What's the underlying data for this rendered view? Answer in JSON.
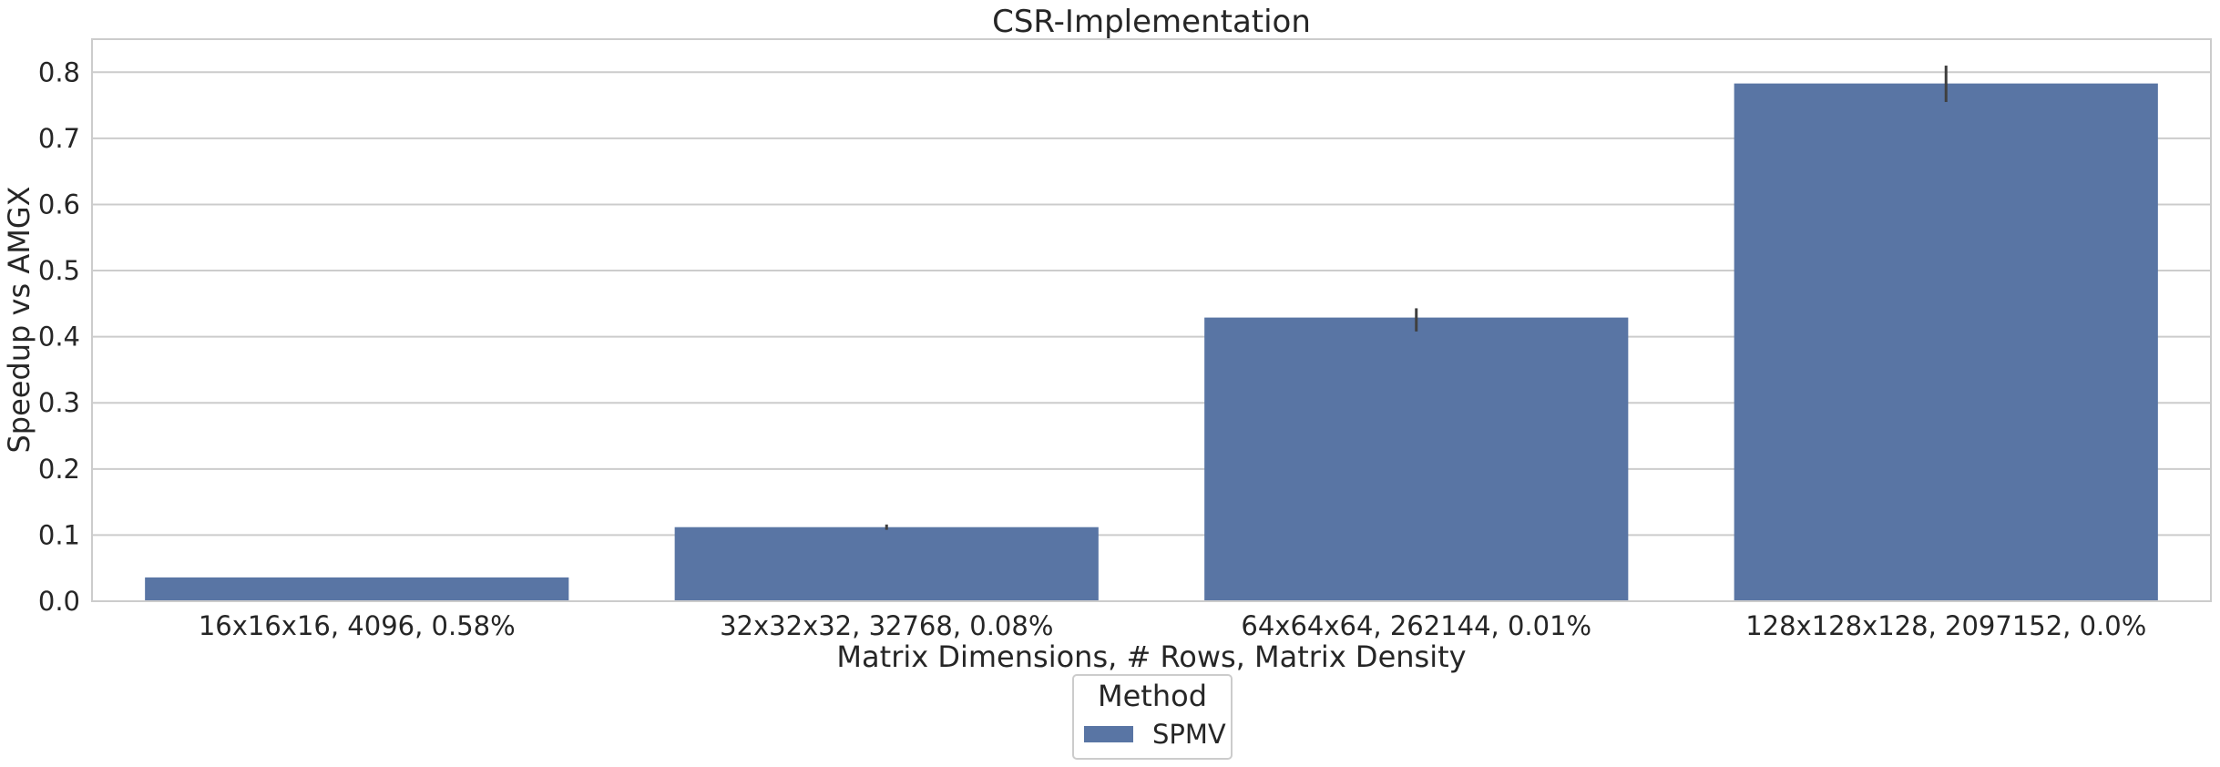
{
  "chart_data": {
    "type": "bar",
    "title": "CSR-Implementation",
    "xlabel": "Matrix Dimensions, # Rows, Matrix Density",
    "ylabel": "Speedup vs AMGX",
    "categories": [
      "16x16x16, 4096, 0.58%",
      "32x32x32, 32768, 0.08%",
      "64x64x64, 262144, 0.01%",
      "128x128x128, 2097152, 0.0%"
    ],
    "series": [
      {
        "name": "SPMV",
        "values": [
          0.036,
          0.112,
          0.429,
          0.783
        ],
        "error_low": [
          0.036,
          0.108,
          0.408,
          0.755
        ],
        "error_high": [
          0.036,
          0.116,
          0.443,
          0.81
        ],
        "color": "#5975a4"
      }
    ],
    "ylim": [
      0,
      0.85
    ],
    "yticks": [
      0.0,
      0.1,
      0.2,
      0.3,
      0.4,
      0.5,
      0.6,
      0.7,
      0.8
    ],
    "ytick_labels": [
      "0.0",
      "0.1",
      "0.2",
      "0.3",
      "0.4",
      "0.5",
      "0.6",
      "0.7",
      "0.8"
    ],
    "grid": true,
    "legend": {
      "title": "Method",
      "placement": "bottom-center"
    },
    "colors": {
      "bar": "#5975a4",
      "grid": "#cccccc",
      "axis": "#cccccc",
      "error_bar": "#3f3f3f",
      "text": "#262626"
    }
  }
}
